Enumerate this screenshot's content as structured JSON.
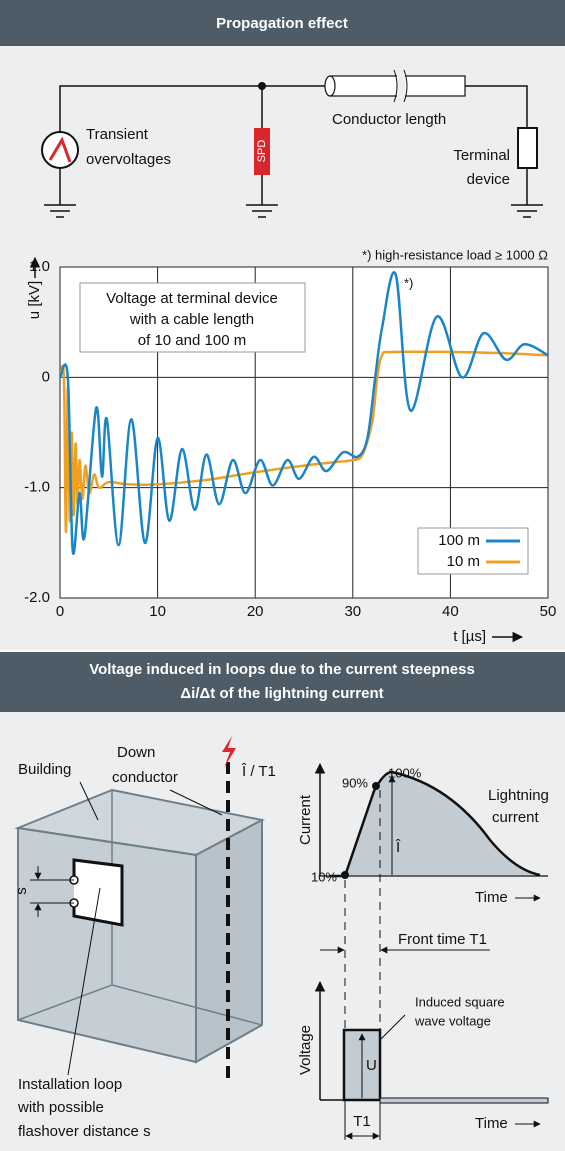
{
  "header1": {
    "title": "Propagation effect"
  },
  "circuit": {
    "source_label": [
      "Transient",
      "overvoltages"
    ],
    "spd_label": "SPD",
    "conductor_label": "Conductor length",
    "terminal_label": [
      "Terminal",
      "device"
    ]
  },
  "chart_data": {
    "type": "line",
    "note": "*) high-resistance load ≥ 1000 Ω",
    "annotation": [
      "Voltage at terminal device",
      "with a cable length",
      "of 10 and 100 m"
    ],
    "peak_marker": "*)",
    "ylabel": "u [kV]",
    "xlabel": "t [µs]",
    "xlim": [
      0,
      50
    ],
    "xticks": [
      0,
      10,
      20,
      30,
      40,
      50
    ],
    "ylim": [
      -2,
      1
    ],
    "yticks": [
      {
        "value": 1,
        "label": "1.0"
      },
      0,
      {
        "value": -1,
        "label": "-1.0"
      },
      {
        "value": -2,
        "label": "-2.0"
      }
    ],
    "grid": true,
    "legend": "lower right",
    "series": [
      {
        "name": "100 m",
        "color": "#1a86c8",
        "x": [
          0,
          0.8,
          1.3,
          2.0,
          2.5,
          3.7,
          4.3,
          4.8,
          6.0,
          7.3,
          8.7,
          10.0,
          11.2,
          12.5,
          13.8,
          15.0,
          16.3,
          17.7,
          19.0,
          20.5,
          21.8,
          23.3,
          24.5,
          26.0,
          27.3,
          29.0,
          30.5,
          31.5,
          32.3,
          33.0,
          34.4,
          35.9,
          38.6,
          41.2,
          43.4,
          45.7,
          47.6,
          50
        ],
        "values": [
          0,
          0,
          -1.57,
          -1.05,
          -1.45,
          -0.28,
          -0.9,
          -0.38,
          -1.52,
          -0.38,
          -1.5,
          -0.55,
          -1.3,
          -0.65,
          -1.2,
          -0.7,
          -1.15,
          -0.75,
          -1.05,
          -0.75,
          -0.98,
          -0.75,
          -0.92,
          -0.72,
          -0.85,
          -0.68,
          -0.72,
          -0.55,
          0.0,
          0.45,
          0.93,
          -0.3,
          0.55,
          0.0,
          0.4,
          0.16,
          0.3,
          0.2
        ]
      },
      {
        "name": "10 m",
        "color": "#f0a020",
        "x": [
          0,
          0.4,
          0.6,
          0.8,
          1.0,
          1.2,
          1.4,
          1.6,
          1.8,
          2.0,
          2.3,
          2.6,
          3.0,
          3.5,
          4.0,
          5,
          7,
          10,
          15,
          20,
          25,
          28,
          30,
          31,
          32,
          32.5,
          33,
          34,
          40,
          45,
          50
        ],
        "values": [
          0,
          0,
          -1.4,
          -0.1,
          -1.3,
          -0.5,
          -1.25,
          -0.6,
          -1.15,
          -0.75,
          -1.1,
          -0.8,
          -1.05,
          -0.88,
          -1.0,
          -0.95,
          -0.97,
          -0.97,
          -0.93,
          -0.86,
          -0.8,
          -0.77,
          -0.75,
          -0.7,
          -0.4,
          0.0,
          0.2,
          0.23,
          0.23,
          0.22,
          0.2
        ]
      }
    ]
  },
  "header2": {
    "title": [
      "Voltage induced in loops due to the current steepness",
      "Δi/Δt of the lightning current"
    ]
  },
  "loop_diagram": {
    "building": "Building",
    "down_conductor": [
      "Down",
      "conductor"
    ],
    "current": "Î / T1",
    "s": "s",
    "installation": [
      "Installation loop",
      "with possible",
      "flashover distance s"
    ]
  },
  "current_graph": {
    "ylabel": "Current",
    "xlabel": "Time",
    "p90": "90%",
    "p100": "100%",
    "p10": "10%",
    "curve_label": [
      "Lightning",
      "current"
    ],
    "peak": "Î"
  },
  "front_time": "Front time T1",
  "voltage_graph": {
    "ylabel": "Voltage",
    "xlabel": "Time",
    "wave_label": [
      "Induced square",
      "wave voltage"
    ],
    "amplitude": "U",
    "duration": "T1"
  }
}
